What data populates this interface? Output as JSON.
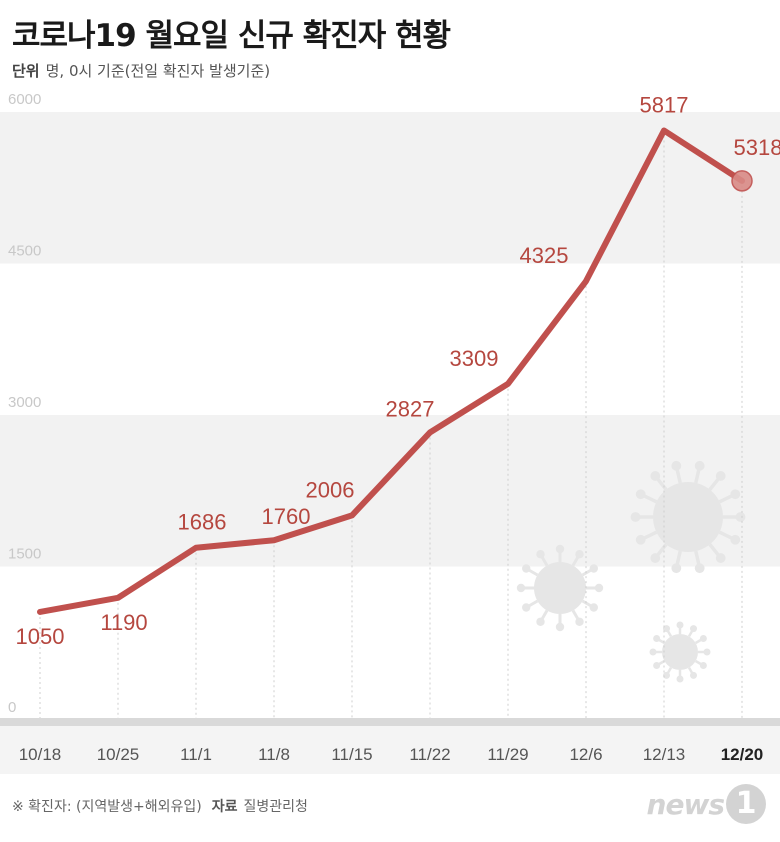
{
  "title": "코로나19 월요일 신규 확진자 현황",
  "unit": {
    "label": "단위",
    "text": "명, 0시 기준(전일 확진자 발생기준)"
  },
  "footnote": {
    "note": "※ 확진자: (지역발생+해외유입)",
    "source_label": "자료",
    "source": "질병관리청"
  },
  "logo": {
    "text": "news",
    "badge": "1"
  },
  "colors": {
    "line": "#c0504d",
    "label": "#b5473f",
    "band": "#f2f2f2",
    "axis_bar": "#d9d9d9",
    "virus": "#e6e6e6"
  },
  "chart_data": {
    "type": "line",
    "categories": [
      "10/18",
      "10/25",
      "11/1",
      "11/8",
      "11/15",
      "11/22",
      "11/29",
      "12/6",
      "12/13",
      "12/20"
    ],
    "values": [
      1050,
      1190,
      1686,
      1760,
      2006,
      2827,
      3309,
      4325,
      5817,
      5318
    ],
    "ylim": [
      0,
      6000
    ],
    "yticks": [
      "0",
      "1500",
      "3000",
      "4500",
      "6000"
    ],
    "highlight_index": 9,
    "grid": "dotted vertical lines, alternating horizontal bands"
  }
}
